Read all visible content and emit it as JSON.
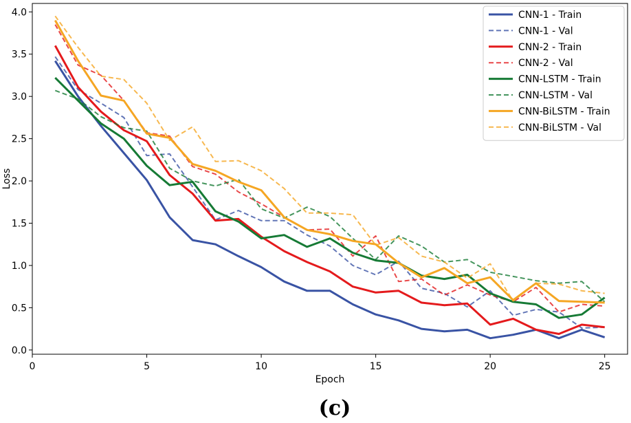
{
  "chart_data": {
    "type": "line",
    "title": "",
    "xlabel": "Epoch",
    "ylabel": "Loss",
    "caption": "(c)",
    "xlim": [
      0,
      26
    ],
    "ylim": [
      -0.05,
      4.1
    ],
    "xticks": [
      0,
      5,
      10,
      15,
      20,
      25
    ],
    "xtick_labels": [
      "0",
      "5",
      "10",
      "15",
      "20",
      "25"
    ],
    "yticks": [
      0.0,
      0.5,
      1.0,
      1.5,
      2.0,
      2.5,
      3.0,
      3.5,
      4.0
    ],
    "ytick_labels": [
      "0.0",
      "0.5",
      "1.0",
      "1.5",
      "2.0",
      "2.5",
      "3.0",
      "3.5",
      "4.0"
    ],
    "grid": false,
    "legend_position": "top-right",
    "x": [
      1,
      2,
      3,
      4,
      5,
      6,
      7,
      8,
      9,
      10,
      11,
      12,
      13,
      14,
      15,
      16,
      17,
      18,
      19,
      20,
      21,
      22,
      23,
      24,
      25
    ],
    "series": [
      {
        "name": "CNN-1 - Train",
        "color": "#3953a4",
        "dash": "solid",
        "values": [
          3.42,
          3.0,
          2.65,
          2.33,
          2.01,
          1.57,
          1.3,
          1.25,
          1.11,
          0.98,
          0.81,
          0.7,
          0.7,
          0.54,
          0.42,
          0.35,
          0.25,
          0.22,
          0.24,
          0.14,
          0.18,
          0.24,
          0.14,
          0.24,
          0.15
        ]
      },
      {
        "name": "CNN-1 - Val",
        "color": "#3953a4",
        "dash": "dashed",
        "values": [
          3.47,
          3.08,
          2.92,
          2.75,
          2.3,
          2.32,
          1.93,
          1.54,
          1.65,
          1.53,
          1.53,
          1.36,
          1.23,
          1.0,
          0.89,
          1.05,
          0.73,
          0.67,
          0.51,
          0.7,
          0.41,
          0.48,
          0.45,
          0.26,
          0.27
        ]
      },
      {
        "name": "CNN-2 - Train",
        "color": "#e41a1c",
        "dash": "solid",
        "values": [
          3.6,
          3.11,
          2.82,
          2.6,
          2.47,
          2.07,
          1.85,
          1.53,
          1.55,
          1.34,
          1.17,
          1.04,
          0.93,
          0.75,
          0.68,
          0.7,
          0.56,
          0.53,
          0.55,
          0.3,
          0.37,
          0.24,
          0.19,
          0.3,
          0.27
        ]
      },
      {
        "name": "CNN-2 - Val",
        "color": "#e41a1c",
        "dash": "dashed",
        "values": [
          3.85,
          3.37,
          3.25,
          2.95,
          2.57,
          2.53,
          2.17,
          2.08,
          1.87,
          1.73,
          1.57,
          1.42,
          1.43,
          1.11,
          1.35,
          0.81,
          0.84,
          0.65,
          0.77,
          0.65,
          0.57,
          0.74,
          0.45,
          0.54,
          0.52
        ]
      },
      {
        "name": "CNN-LSTM - Train",
        "color": "#167a35",
        "dash": "solid",
        "values": [
          3.22,
          2.95,
          2.68,
          2.5,
          2.18,
          1.95,
          1.99,
          1.64,
          1.52,
          1.32,
          1.36,
          1.22,
          1.32,
          1.15,
          1.06,
          1.03,
          0.88,
          0.84,
          0.89,
          0.67,
          0.57,
          0.54,
          0.38,
          0.42,
          0.62
        ]
      },
      {
        "name": "CNN-LSTM - Val",
        "color": "#167a35",
        "dash": "dashed",
        "values": [
          3.07,
          2.97,
          2.76,
          2.63,
          2.59,
          2.15,
          2.0,
          1.94,
          2.02,
          1.67,
          1.56,
          1.69,
          1.58,
          1.32,
          1.07,
          1.35,
          1.23,
          1.04,
          1.07,
          0.92,
          0.87,
          0.82,
          0.79,
          0.81,
          0.57
        ]
      },
      {
        "name": "CNN-BiLSTM - Train",
        "color": "#f5a623",
        "dash": "solid",
        "values": [
          3.9,
          3.42,
          3.01,
          2.95,
          2.56,
          2.51,
          2.2,
          2.12,
          1.99,
          1.89,
          1.57,
          1.42,
          1.37,
          1.29,
          1.25,
          1.03,
          0.86,
          0.97,
          0.79,
          0.86,
          0.59,
          0.79,
          0.58,
          0.57,
          0.56
        ]
      },
      {
        "name": "CNN-BiLSTM - Val",
        "color": "#f5a623",
        "dash": "dashed",
        "values": [
          3.95,
          3.58,
          3.24,
          3.2,
          2.92,
          2.48,
          2.64,
          2.23,
          2.24,
          2.12,
          1.91,
          1.62,
          1.62,
          1.6,
          1.24,
          1.33,
          1.11,
          1.04,
          0.85,
          1.02,
          0.58,
          0.79,
          0.78,
          0.7,
          0.67
        ]
      }
    ]
  }
}
